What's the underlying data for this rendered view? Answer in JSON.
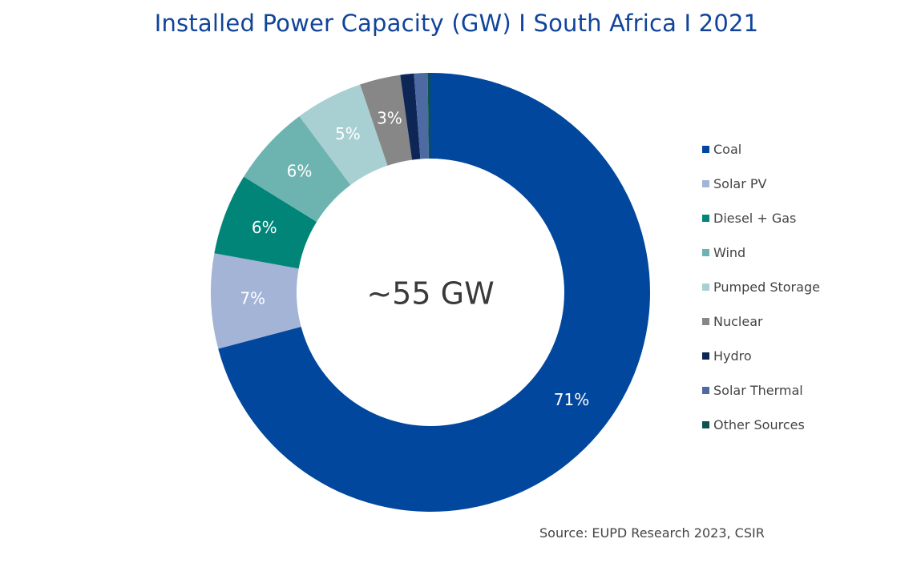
{
  "chart_data": {
    "type": "pie",
    "title": "Installed Power Capacity (GW) I South Africa I 2021",
    "center_label": "~55 GW",
    "categories": [
      "Coal",
      "Solar PV",
      "Diesel + Gas",
      "Wind",
      "Pumped Storage",
      "Nuclear",
      "Hydro",
      "Solar Thermal",
      "Other Sources"
    ],
    "values": [
      71,
      7,
      6,
      6,
      5,
      3,
      1,
      1,
      0.2
    ],
    "data_labels": [
      "71%",
      "7%",
      "6%",
      "6%",
      "5%",
      "3%",
      "",
      "",
      ""
    ],
    "colors": [
      "#00479d",
      "#a4b4d6",
      "#008578",
      "#6db4b0",
      "#a8cfd2",
      "#878787",
      "#0d2656",
      "#4d6aa3",
      "#0e5250"
    ],
    "legend_position": "right",
    "source": "Source: EUPD Research 2023, CSIR"
  }
}
